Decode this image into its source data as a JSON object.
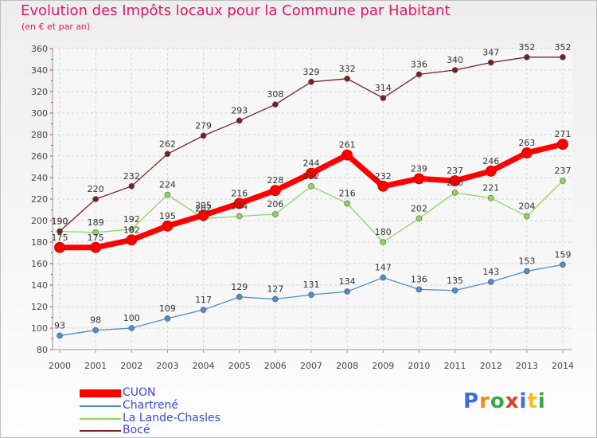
{
  "title": "Evolution des Impôts locaux pour la Commune par Habitant",
  "subtitle": "(en € et par an)",
  "logo": {
    "letters": [
      "P",
      "r",
      "o",
      "x",
      "i",
      "t",
      "i"
    ],
    "colors": [
      "#3b6fd8",
      "#f08a1c",
      "#3aa84a",
      "#e23b2a",
      "#3b6fd8",
      "#f0c21c",
      "#3aa84a"
    ]
  },
  "chart_data": {
    "type": "line",
    "title": "Evolution des Impôts locaux pour la Commune par Habitant",
    "subtitle": "(en € et par an)",
    "x": [
      "2000",
      "2001",
      "2002",
      "2003",
      "2004",
      "2005",
      "2006",
      "2007",
      "2008",
      "2009",
      "2010",
      "2011",
      "2012",
      "2013",
      "2014"
    ],
    "ylim": [
      80,
      360
    ],
    "yticks": [
      80,
      100,
      120,
      140,
      160,
      180,
      200,
      220,
      240,
      260,
      280,
      300,
      320,
      340,
      360
    ],
    "grid": true,
    "legend_position": "bottom-left",
    "series": [
      {
        "name": "CUON",
        "color": "#ff0000",
        "values": [
          175,
          175,
          182,
          195,
          205,
          216,
          228,
          244,
          261,
          232,
          239,
          237,
          246,
          263,
          271
        ]
      },
      {
        "name": "Chartrené",
        "color": "#4d8fcc",
        "values": [
          93,
          98,
          100,
          109,
          117,
          129,
          127,
          131,
          134,
          147,
          136,
          135,
          143,
          153,
          159
        ]
      },
      {
        "name": "La Lande-Chasles",
        "color": "#8ed65c",
        "values": [
          190,
          189,
          192,
          224,
          202,
          204,
          206,
          232,
          216,
          180,
          202,
          226,
          221,
          204,
          237
        ]
      },
      {
        "name": "Bocé",
        "color": "#7a1f1f",
        "values": [
          190,
          220,
          232,
          262,
          279,
          293,
          308,
          329,
          332,
          314,
          336,
          340,
          347,
          352,
          352
        ]
      }
    ]
  }
}
